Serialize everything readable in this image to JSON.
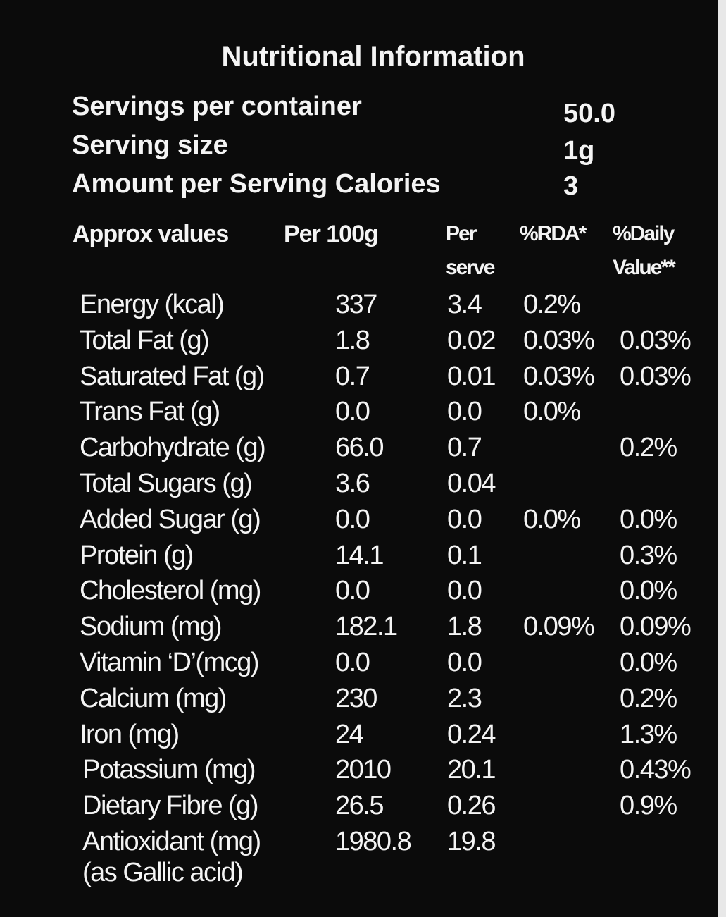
{
  "title": "Nutritional Information",
  "summary": [
    {
      "label": "Servings per container",
      "value": "50.0"
    },
    {
      "label": "Serving size",
      "value": "1g"
    },
    {
      "label": "Amount per Serving Calories",
      "value": "3"
    }
  ],
  "table": {
    "header": [
      "Approx values",
      "Per 100g",
      "Per\nserve",
      "%RDA*",
      "%Daily\nValue**"
    ],
    "rows": [
      [
        "Energy (kcal)",
        "337",
        "3.4",
        "0.2%",
        null
      ],
      [
        "Total Fat (g)",
        "1.8",
        "0.02",
        "0.03%",
        "0.03%"
      ],
      [
        "Saturated Fat (g)",
        "0.7",
        "0.01",
        "0.03%",
        "0.03%"
      ],
      [
        "Trans Fat (g)",
        "0.0",
        "0.0",
        "0.0%",
        null
      ],
      [
        "Carbohydrate (g)",
        "66.0",
        "0.7",
        null,
        "0.2%"
      ],
      [
        "Total Sugars (g)",
        "3.6",
        "0.04",
        null,
        null
      ],
      [
        "Added Sugar (g)",
        "0.0",
        "0.0",
        "0.0%",
        "0.0%"
      ],
      [
        "Protein (g)",
        "14.1",
        "0.1",
        null,
        "0.3%"
      ],
      [
        "Cholesterol (mg)",
        "0.0",
        "0.0",
        null,
        "0.0%"
      ],
      [
        "Sodium (mg)",
        "182.1",
        "1.8",
        "0.09%",
        "0.09%"
      ],
      [
        "Vitamin ‘D’(mcg)",
        "0.0",
        "0.0",
        null,
        "0.0%"
      ],
      [
        "Calcium (mg)",
        "230",
        "2.3",
        null,
        "0.2%"
      ],
      [
        "Iron (mg)",
        "24",
        "0.24",
        null,
        "1.3%"
      ],
      [
        "Potassium (mg)",
        "2010",
        "20.1",
        null,
        "0.43%"
      ],
      [
        "Dietary Fibre (g)",
        "26.5",
        "0.26",
        null,
        "0.9%"
      ],
      [
        "Antioxidant (mg)\n(as Gallic acid)",
        "1980.8",
        "19.8",
        null,
        null
      ]
    ]
  }
}
